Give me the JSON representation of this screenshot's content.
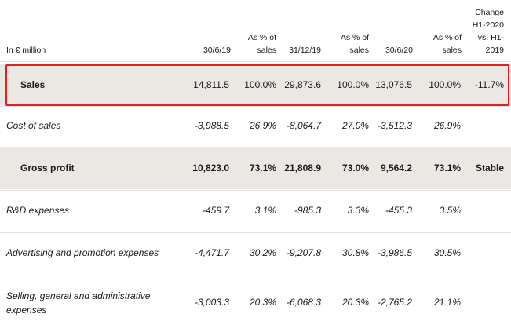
{
  "header": {
    "label": "In € million",
    "cols": [
      [
        "30/6/19"
      ],
      [
        "As % of",
        "sales"
      ],
      [
        "31/12/19"
      ],
      [
        "As % of",
        "sales"
      ],
      [
        "30/6/20"
      ],
      [
        "As % of",
        "sales"
      ],
      [
        "Change",
        "H1-2020",
        "vs. H1-",
        "2019"
      ]
    ]
  },
  "rows": [
    {
      "label": [
        "Sales"
      ],
      "values": [
        "14,811.5",
        "100.0%",
        "29,873.6",
        "100.0%",
        "13,076.5",
        "100.0%",
        "-11.7%"
      ]
    },
    {
      "label": [
        "Cost of sales"
      ],
      "values": [
        "-3,988.5",
        "26.9%",
        "-8,064.7",
        "27.0%",
        "-3,512.3",
        "26.9%",
        ""
      ]
    },
    {
      "label": [
        "Gross profit"
      ],
      "values": [
        "10,823.0",
        "73.1%",
        "21,808.9",
        "73.0%",
        "9,564.2",
        "73.1%",
        "Stable"
      ]
    },
    {
      "label": [
        "R&D expenses"
      ],
      "values": [
        "-459.7",
        "3.1%",
        "-985.3",
        "3.3%",
        "-455.3",
        "3.5%",
        ""
      ]
    },
    {
      "label": [
        "Advertising and promotion expenses"
      ],
      "values": [
        "-4,471.7",
        "30.2%",
        "-9,207.8",
        "30.8%",
        "-3,986.5",
        "30.5%",
        ""
      ]
    },
    {
      "label": [
        "Selling, general and administrative",
        "expenses"
      ],
      "values": [
        "-3,003.3",
        "20.3%",
        "-6,068.3",
        "20.3%",
        "-2,765.2",
        "21.1%",
        ""
      ]
    }
  ]
}
